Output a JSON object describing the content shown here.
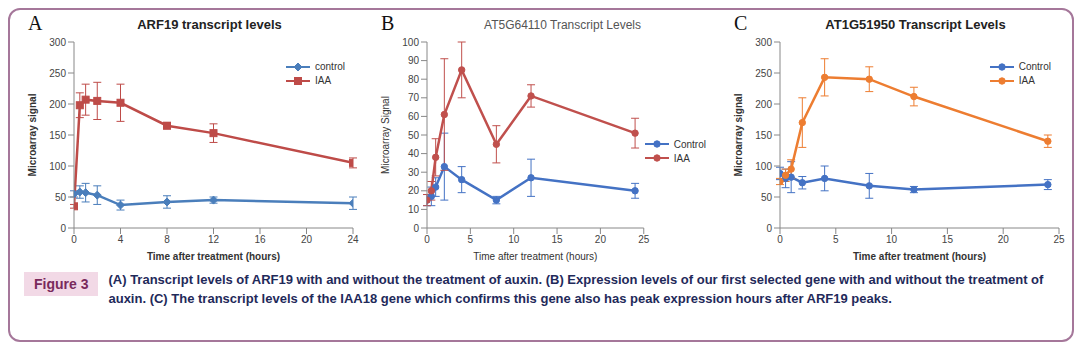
{
  "figure": {
    "label": "Figure 3",
    "caption": "(A) Transcript levels of ARF19 with and without the treatment of auxin. (B) Expression levels of our first selected gene with and without the treatment of auxin. (C) The transcript levels of the IAA18 gene which confirms this gene also has peak expression hours after ARF19 peaks."
  },
  "chart_data": [
    {
      "panel": "A",
      "type": "line",
      "title": "ARF19 transcript levels",
      "x_label": "Time after treatment (hours)",
      "y_label": "Microarray signal",
      "x": [
        0,
        0.5,
        1,
        2,
        4,
        8,
        12,
        24
      ],
      "xlim": [
        0,
        24
      ],
      "xticks": [
        0,
        4,
        8,
        12,
        16,
        20,
        24
      ],
      "ylim": [
        0,
        300
      ],
      "yticks": [
        0,
        50,
        100,
        150,
        200,
        250,
        300
      ],
      "grid": false,
      "legend": "upper right",
      "series": [
        {
          "name": "control",
          "color": "#4a7ebb",
          "marker": "diamond",
          "values": [
            55,
            58,
            57,
            53,
            37,
            42,
            45,
            40
          ],
          "errors": [
            5,
            10,
            15,
            15,
            8,
            10,
            5,
            10
          ]
        },
        {
          "name": "IAA",
          "color": "#be4b48",
          "marker": "square",
          "values": [
            35,
            198,
            207,
            205,
            202,
            165,
            153,
            105
          ],
          "errors": [
            3,
            20,
            25,
            30,
            30,
            5,
            15,
            8
          ]
        }
      ]
    },
    {
      "panel": "B",
      "type": "line",
      "title": "AT5G64110 Transcript Levels",
      "x_label": "Time after treatment (hours)",
      "y_label": "Microarray Signal",
      "x": [
        0,
        0.5,
        1,
        2,
        4,
        8,
        12,
        24
      ],
      "xlim": [
        0,
        25
      ],
      "xticks": [
        0,
        5,
        10,
        15,
        20,
        25
      ],
      "ylim": [
        0,
        100
      ],
      "yticks": [
        0,
        10,
        20,
        30,
        40,
        50,
        60,
        70,
        80,
        90,
        100
      ],
      "grid": false,
      "legend": "right",
      "series": [
        {
          "name": "Control",
          "color": "#4472c4",
          "marker": "circle",
          "values": [
            15,
            17,
            22,
            33,
            26,
            15,
            27,
            20
          ],
          "errors": [
            3,
            5,
            5,
            18,
            7,
            2,
            10,
            4
          ]
        },
        {
          "name": "IAA",
          "color": "#c0504d",
          "marker": "circle",
          "values": [
            15,
            20,
            38,
            61,
            85,
            45,
            71,
            51
          ],
          "errors": [
            3,
            5,
            10,
            30,
            15,
            10,
            6,
            8
          ]
        }
      ]
    },
    {
      "panel": "C",
      "type": "line",
      "title": "AT1G51950 Transcript Levels",
      "x_label": "Time after treatment (hours)",
      "y_label": "Microarray signal",
      "x": [
        0,
        0.5,
        1,
        2,
        4,
        8,
        12,
        24
      ],
      "xlim": [
        0,
        25
      ],
      "xticks": [
        0,
        5,
        10,
        15,
        20,
        25
      ],
      "ylim": [
        0,
        300
      ],
      "yticks": [
        0,
        50,
        100,
        150,
        200,
        250,
        300
      ],
      "grid": false,
      "legend": "upper right",
      "series": [
        {
          "name": "Control",
          "color": "#4472c4",
          "marker": "circle",
          "values": [
            88,
            80,
            82,
            73,
            80,
            68,
            62,
            70
          ],
          "errors": [
            10,
            15,
            25,
            10,
            20,
            20,
            5,
            8
          ]
        },
        {
          "name": "IAA",
          "color": "#ed7d31",
          "marker": "circle",
          "values": [
            75,
            85,
            95,
            170,
            243,
            240,
            212,
            140
          ],
          "errors": [
            5,
            10,
            15,
            40,
            30,
            20,
            15,
            10
          ]
        }
      ]
    }
  ]
}
